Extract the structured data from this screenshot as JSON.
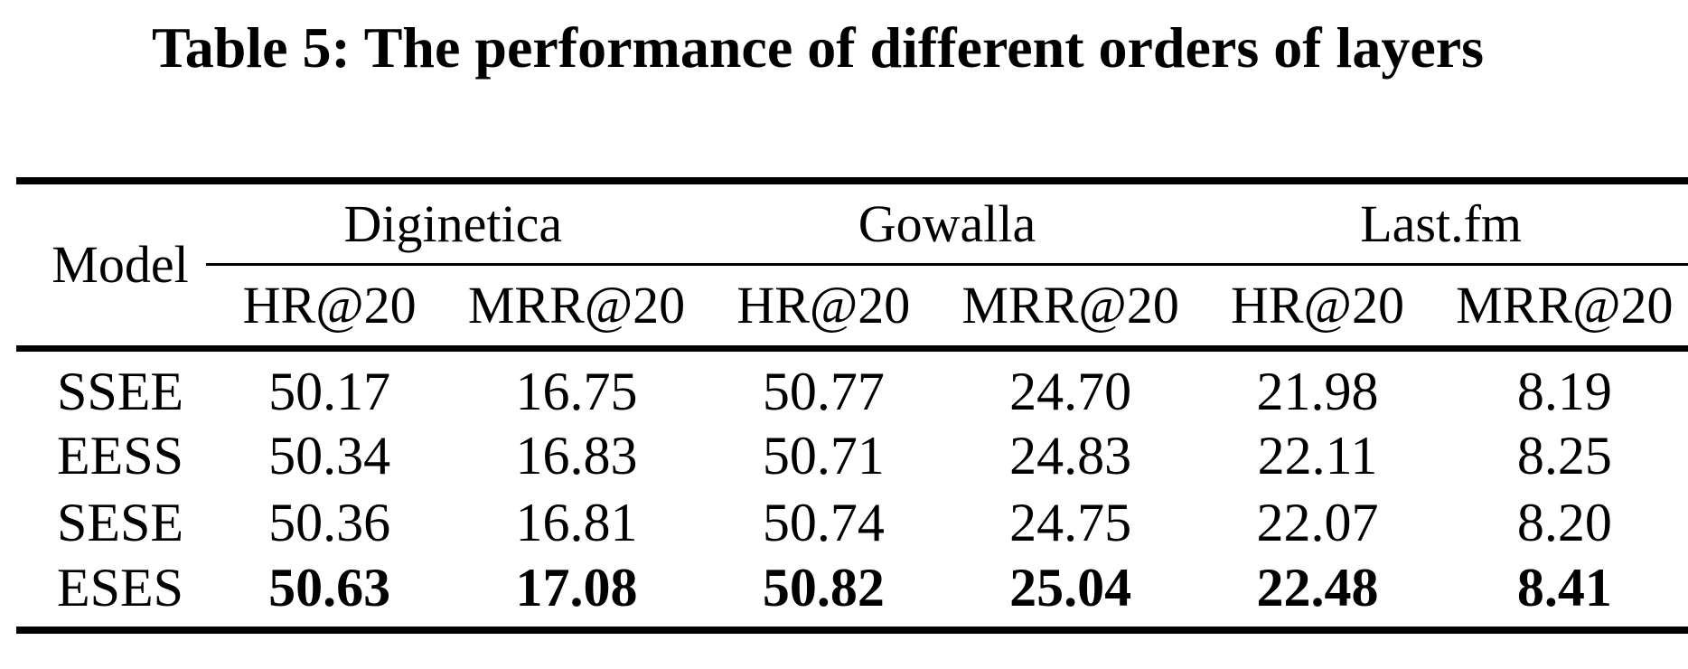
{
  "title": "Table 5: The performance of different orders of layers",
  "table": {
    "model_header": "Model",
    "groups": [
      {
        "label": "Diginetica",
        "metrics": [
          "HR@20",
          "MRR@20"
        ]
      },
      {
        "label": "Gowalla",
        "metrics": [
          "HR@20",
          "MRR@20"
        ]
      },
      {
        "label": "Last.fm",
        "metrics": [
          "HR@20",
          "MRR@20"
        ]
      }
    ],
    "rows": [
      {
        "model": "SSEE",
        "bold": false,
        "values": [
          "50.17",
          "16.75",
          "50.77",
          "24.70",
          "21.98",
          "8.19"
        ]
      },
      {
        "model": "EESS",
        "bold": false,
        "values": [
          "50.34",
          "16.83",
          "50.71",
          "24.83",
          "22.11",
          "8.25"
        ]
      },
      {
        "model": "SESE",
        "bold": false,
        "values": [
          "50.36",
          "16.81",
          "50.74",
          "24.75",
          "22.07",
          "8.20"
        ]
      },
      {
        "model": "ESES",
        "bold": true,
        "values": [
          "50.63",
          "17.08",
          "50.82",
          "25.04",
          "22.48",
          "8.41"
        ]
      }
    ],
    "colors": {
      "text": "#000000",
      "background": "#ffffff",
      "rule": "#000000"
    }
  }
}
